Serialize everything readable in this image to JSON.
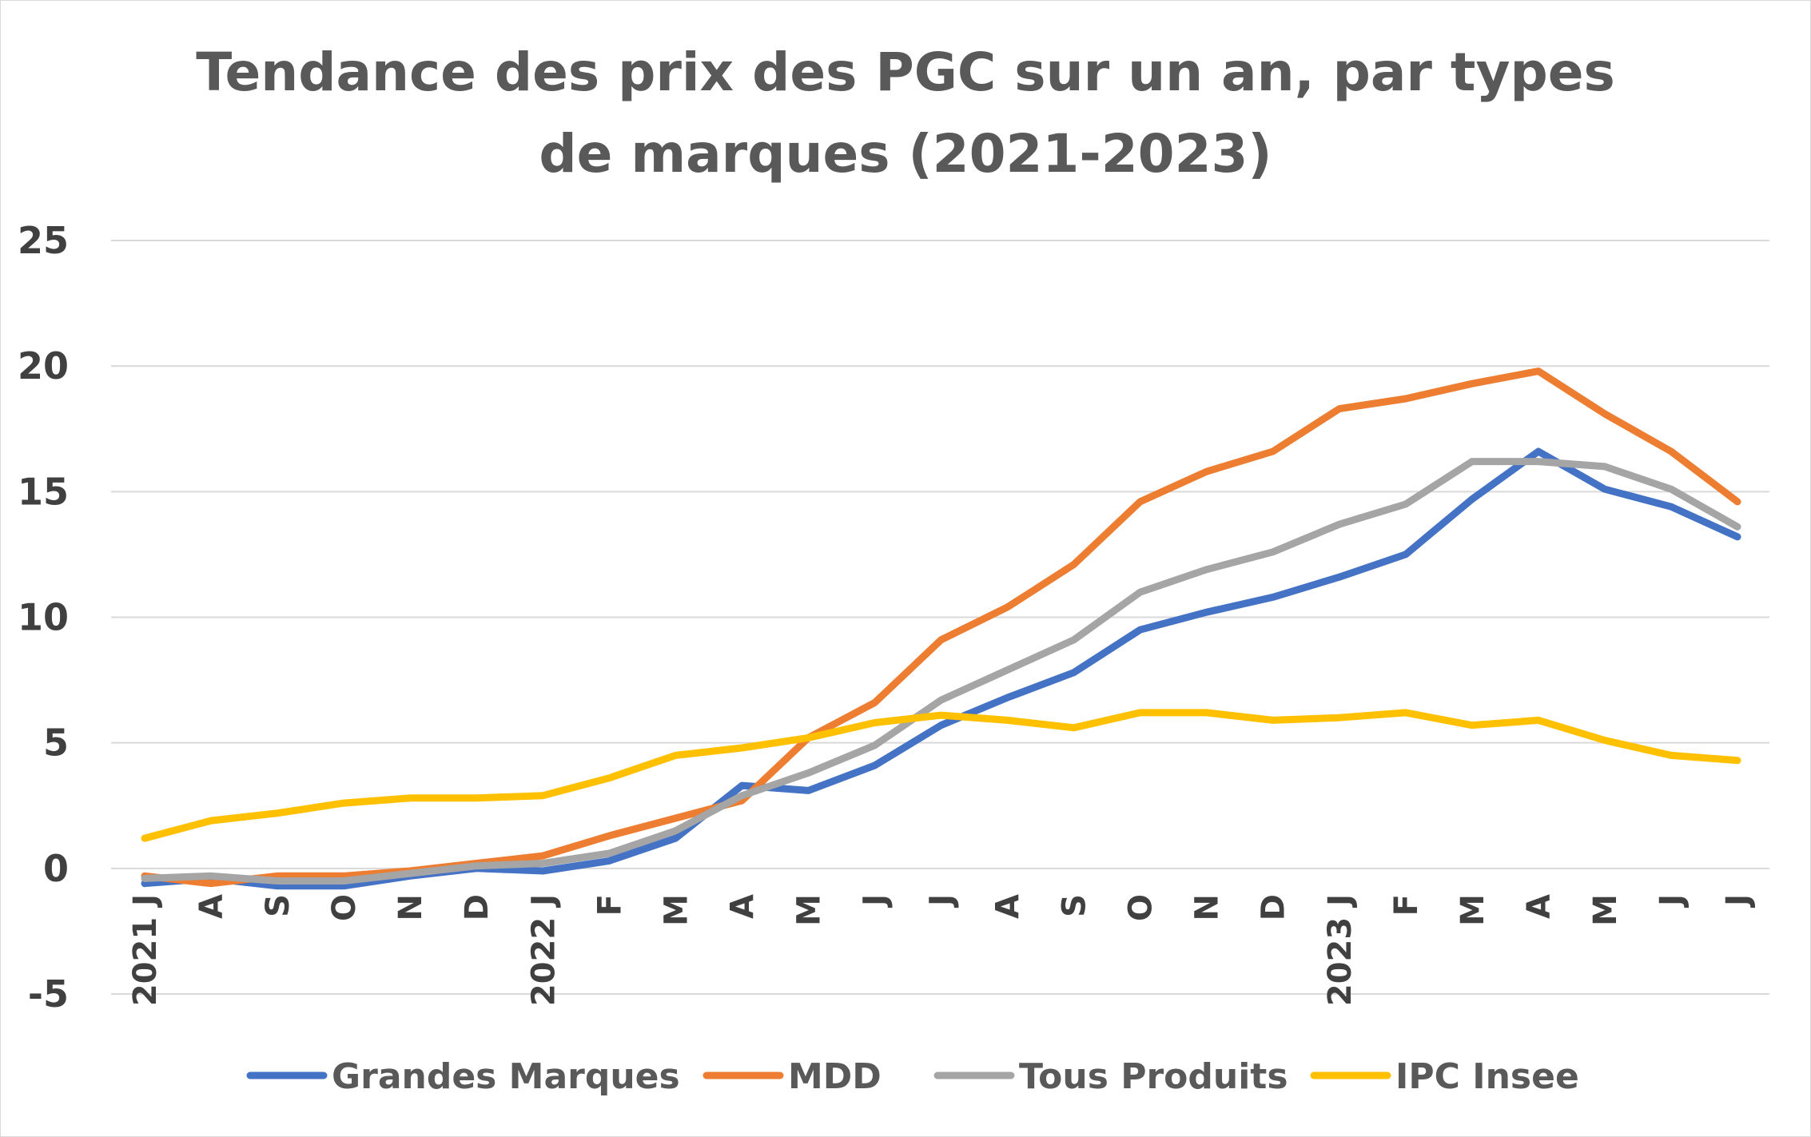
{
  "chart_data": {
    "type": "line",
    "title": "Tendance des prix des PGC sur un an, par types de marques (2021-2023)",
    "title_lines": [
      "Tendance des prix des PGC sur un an, par types",
      "de marques (2021-2023)"
    ],
    "xlabel": "",
    "ylabel": "",
    "ylim": [
      -5,
      25
    ],
    "yticks": [
      "-5",
      "0",
      "5",
      "10",
      "15",
      "20",
      "25"
    ],
    "categories": [
      "2021 J",
      "A",
      "S",
      "O",
      "N",
      "D",
      "2022 J",
      "F",
      "M",
      "A",
      "M",
      "J",
      "J",
      "A",
      "S",
      "O",
      "N",
      "D",
      "2023 J",
      "F",
      "M",
      "A",
      "M",
      "J",
      "J"
    ],
    "grid": true,
    "legend_position": "bottom",
    "series": [
      {
        "name": "Grandes Marques",
        "color": "#4472C4",
        "values": [
          -0.6,
          -0.4,
          -0.7,
          -0.7,
          -0.3,
          0.0,
          -0.1,
          0.3,
          1.2,
          3.3,
          3.1,
          4.1,
          5.7,
          6.8,
          7.8,
          9.5,
          10.2,
          10.8,
          11.6,
          12.5,
          14.7,
          16.6,
          15.1,
          14.4,
          13.2
        ]
      },
      {
        "name": "MDD",
        "color": "#ED7D31",
        "values": [
          -0.3,
          -0.6,
          -0.3,
          -0.3,
          -0.1,
          0.2,
          0.5,
          1.3,
          2.0,
          2.7,
          5.2,
          6.6,
          9.1,
          10.4,
          12.1,
          14.6,
          15.8,
          16.6,
          18.3,
          18.7,
          19.3,
          19.8,
          18.1,
          16.6,
          14.6
        ]
      },
      {
        "name": "Tous Produits",
        "color": "#A5A5A5",
        "values": [
          -0.4,
          -0.3,
          -0.5,
          -0.5,
          -0.2,
          0.1,
          0.2,
          0.6,
          1.5,
          2.9,
          3.8,
          4.9,
          6.7,
          7.9,
          9.1,
          11.0,
          11.9,
          12.6,
          13.7,
          14.5,
          16.2,
          16.2,
          16.0,
          15.1,
          13.6
        ]
      },
      {
        "name": "IPC Insee",
        "color": "#FFC000",
        "values": [
          1.2,
          1.9,
          2.2,
          2.6,
          2.8,
          2.8,
          2.9,
          3.6,
          4.5,
          4.8,
          5.2,
          5.8,
          6.1,
          5.9,
          5.6,
          6.2,
          6.2,
          5.9,
          6.0,
          6.2,
          5.7,
          5.9,
          5.1,
          4.5,
          4.3
        ]
      }
    ]
  }
}
